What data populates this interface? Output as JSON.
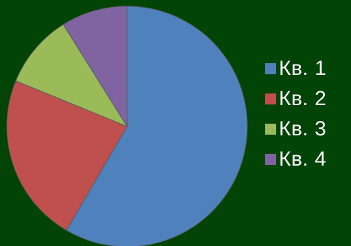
{
  "chart_data": {
    "type": "pie",
    "categories": [
      "Кв. 1",
      "Кв. 2",
      "Кв. 3",
      "Кв. 4"
    ],
    "values": [
      59,
      23,
      10,
      9
    ],
    "colors": [
      "#4F81BD",
      "#C0504D",
      "#9BBB59",
      "#8064A2"
    ],
    "title": "",
    "legend_placement": "right"
  }
}
